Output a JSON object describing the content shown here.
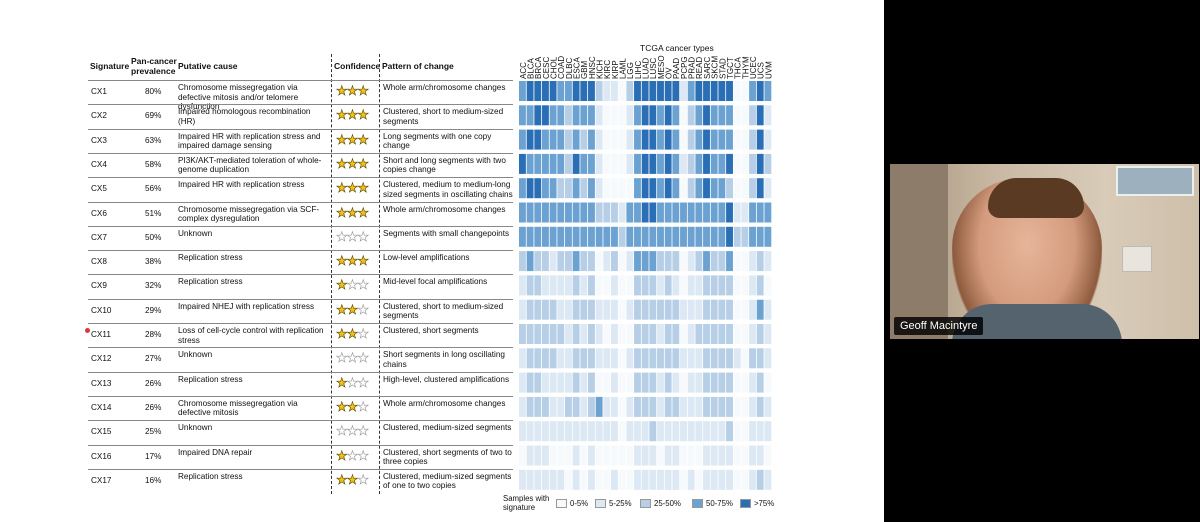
{
  "table": {
    "headers": {
      "signature": "Signature",
      "prevalence": "Pan-cancer prevalence",
      "cause": "Putative cause",
      "confidence": "Confidence",
      "pattern": "Pattern of change"
    },
    "rows": [
      {
        "sig": "CX1",
        "prev": "80%",
        "cause": "Chromosome missegregation via defective mitosis and/or telomere dysfunction",
        "stars": 3,
        "pattern": "Whole arm/chromosome changes"
      },
      {
        "sig": "CX2",
        "prev": "69%",
        "cause": "Impaired homologous recombination (HR)",
        "stars": 3,
        "pattern": "Clustered, short to medium-sized segments"
      },
      {
        "sig": "CX3",
        "prev": "63%",
        "cause": "Impaired HR with replication stress and impaired damage sensing",
        "stars": 3,
        "pattern": "Long segments with one copy change"
      },
      {
        "sig": "CX4",
        "prev": "58%",
        "cause": "PI3K/AKT-mediated toleration of whole-genome duplication",
        "stars": 3,
        "pattern": "Short and long segments with two copies change"
      },
      {
        "sig": "CX5",
        "prev": "56%",
        "cause": "Impaired HR with replication stress",
        "stars": 3,
        "pattern": "Clustered, medium to medium-long sized segments in oscillating chains"
      },
      {
        "sig": "CX6",
        "prev": "51%",
        "cause": "Chromosome missegregation via SCF-complex dysregulation",
        "stars": 3,
        "pattern": "Whole arm/chromosome changes"
      },
      {
        "sig": "CX7",
        "prev": "50%",
        "cause": "Unknown",
        "stars": 0,
        "pattern": "Segments with small changepoints"
      },
      {
        "sig": "CX8",
        "prev": "38%",
        "cause": "Replication stress",
        "stars": 3,
        "pattern": "Low-level amplifications"
      },
      {
        "sig": "CX9",
        "prev": "32%",
        "cause": "Replication stress",
        "stars": 1,
        "pattern": "Mid-level focal amplifications"
      },
      {
        "sig": "CX10",
        "prev": "29%",
        "cause": "Impaired NHEJ with replication stress",
        "stars": 2,
        "pattern": "Clustered, short to medium-sized segments"
      },
      {
        "sig": "CX11",
        "prev": "28%",
        "cause": "Loss of cell-cycle control with replication stress",
        "stars": 2,
        "pattern": "Clustered, short segments"
      },
      {
        "sig": "CX12",
        "prev": "27%",
        "cause": "Unknown",
        "stars": 0,
        "pattern": "Short segments in long oscillating chains"
      },
      {
        "sig": "CX13",
        "prev": "26%",
        "cause": "Replication stress",
        "stars": 1,
        "pattern": "High-level, clustered amplifications"
      },
      {
        "sig": "CX14",
        "prev": "26%",
        "cause": "Chromosome missegregation via defective mitosis",
        "stars": 2,
        "pattern": "Whole arm/chromosome changes"
      },
      {
        "sig": "CX15",
        "prev": "25%",
        "cause": "Unknown",
        "stars": 0,
        "pattern": "Clustered, medium-sized segments"
      },
      {
        "sig": "CX16",
        "prev": "17%",
        "cause": "Impaired DNA repair",
        "stars": 1,
        "pattern": "Clustered, short segments of two to three copies"
      },
      {
        "sig": "CX17",
        "prev": "16%",
        "cause": "Replication stress",
        "stars": 2,
        "pattern": "Clustered, medium-sized segments of one to two copies"
      }
    ]
  },
  "heatmap": {
    "title": "TCGA cancer types",
    "cancer_types": [
      "ACC",
      "BLCA",
      "BRCA",
      "CESC",
      "CHOL",
      "COAD",
      "DLBC",
      "ESCA",
      "GBM",
      "HNSC",
      "KICH",
      "KIRC",
      "KIRP",
      "LAML",
      "LGG",
      "LIHC",
      "LUAD",
      "LUSC",
      "MESO",
      "OV",
      "PAAD",
      "PCPG",
      "PRAD",
      "READ",
      "SARC",
      "SKCM",
      "STAD",
      "TGCT",
      "THCA",
      "THYM",
      "UCEC",
      "UCS",
      "UVM"
    ],
    "levels": [
      [
        3,
        4,
        4,
        4,
        4,
        3,
        3,
        4,
        4,
        4,
        2,
        1,
        1,
        0,
        2,
        4,
        4,
        4,
        4,
        4,
        4,
        1,
        3,
        4,
        4,
        4,
        4,
        4,
        0,
        0,
        3,
        4,
        3
      ],
      [
        3,
        3,
        4,
        4,
        3,
        3,
        2,
        3,
        3,
        3,
        1,
        0,
        0,
        0,
        1,
        3,
        4,
        4,
        3,
        4,
        3,
        0,
        2,
        3,
        4,
        3,
        3,
        3,
        0,
        0,
        2,
        4,
        1
      ],
      [
        3,
        4,
        4,
        3,
        3,
        3,
        2,
        3,
        2,
        3,
        1,
        0,
        0,
        0,
        1,
        3,
        4,
        4,
        3,
        4,
        3,
        0,
        2,
        3,
        4,
        3,
        3,
        3,
        0,
        0,
        2,
        4,
        1
      ],
      [
        4,
        3,
        3,
        3,
        3,
        3,
        2,
        4,
        3,
        3,
        1,
        0,
        0,
        0,
        1,
        3,
        4,
        4,
        3,
        4,
        3,
        1,
        2,
        3,
        4,
        3,
        3,
        4,
        0,
        0,
        2,
        4,
        2
      ],
      [
        3,
        4,
        4,
        3,
        3,
        2,
        2,
        3,
        2,
        3,
        1,
        0,
        0,
        0,
        0,
        3,
        4,
        4,
        3,
        4,
        3,
        0,
        2,
        3,
        4,
        3,
        3,
        2,
        0,
        0,
        2,
        4,
        1
      ],
      [
        3,
        3,
        3,
        3,
        3,
        3,
        3,
        3,
        3,
        3,
        2,
        2,
        2,
        1,
        3,
        3,
        4,
        4,
        3,
        3,
        3,
        3,
        3,
        3,
        3,
        3,
        3,
        4,
        1,
        1,
        3,
        3,
        3
      ],
      [
        3,
        3,
        3,
        3,
        3,
        3,
        3,
        3,
        3,
        3,
        3,
        3,
        3,
        2,
        3,
        3,
        3,
        3,
        3,
        3,
        3,
        3,
        3,
        3,
        3,
        3,
        3,
        4,
        2,
        2,
        3,
        3,
        3
      ],
      [
        2,
        3,
        2,
        2,
        1,
        2,
        2,
        3,
        2,
        2,
        0,
        1,
        2,
        0,
        1,
        3,
        3,
        3,
        2,
        2,
        2,
        0,
        1,
        2,
        3,
        2,
        2,
        3,
        0,
        0,
        1,
        2,
        1
      ],
      [
        1,
        2,
        2,
        1,
        1,
        1,
        1,
        2,
        1,
        2,
        0,
        0,
        1,
        0,
        0,
        2,
        2,
        2,
        1,
        2,
        1,
        0,
        1,
        1,
        2,
        2,
        2,
        2,
        0,
        0,
        1,
        2,
        0
      ],
      [
        1,
        2,
        2,
        2,
        2,
        1,
        1,
        2,
        2,
        2,
        1,
        1,
        1,
        0,
        1,
        2,
        2,
        2,
        2,
        2,
        2,
        1,
        1,
        1,
        2,
        2,
        2,
        2,
        0,
        0,
        1,
        3,
        1
      ],
      [
        2,
        2,
        2,
        2,
        2,
        2,
        1,
        2,
        1,
        2,
        1,
        0,
        1,
        0,
        0,
        2,
        2,
        2,
        1,
        2,
        2,
        0,
        1,
        2,
        2,
        2,
        2,
        2,
        0,
        0,
        1,
        2,
        1
      ],
      [
        1,
        2,
        2,
        2,
        2,
        1,
        1,
        2,
        2,
        2,
        1,
        1,
        1,
        0,
        1,
        2,
        2,
        2,
        2,
        2,
        2,
        1,
        1,
        1,
        2,
        2,
        2,
        2,
        1,
        0,
        2,
        2,
        1
      ],
      [
        1,
        2,
        2,
        1,
        1,
        1,
        1,
        2,
        1,
        2,
        0,
        0,
        1,
        0,
        0,
        2,
        2,
        2,
        1,
        2,
        1,
        0,
        1,
        1,
        2,
        2,
        2,
        2,
        0,
        0,
        1,
        2,
        0
      ],
      [
        1,
        2,
        2,
        2,
        1,
        1,
        2,
        2,
        1,
        2,
        3,
        1,
        1,
        0,
        1,
        2,
        2,
        2,
        1,
        2,
        2,
        1,
        1,
        1,
        2,
        2,
        2,
        2,
        0,
        0,
        1,
        2,
        1
      ],
      [
        1,
        1,
        1,
        1,
        1,
        1,
        1,
        1,
        1,
        1,
        1,
        1,
        1,
        0,
        1,
        1,
        1,
        2,
        1,
        1,
        1,
        1,
        1,
        1,
        1,
        1,
        1,
        2,
        0,
        0,
        1,
        1,
        1
      ],
      [
        0,
        1,
        1,
        1,
        0,
        0,
        0,
        1,
        0,
        1,
        0,
        0,
        0,
        0,
        0,
        1,
        1,
        1,
        0,
        1,
        1,
        0,
        0,
        0,
        1,
        1,
        1,
        1,
        0,
        0,
        1,
        1,
        0
      ],
      [
        1,
        1,
        1,
        1,
        1,
        1,
        0,
        1,
        0,
        1,
        0,
        0,
        1,
        0,
        0,
        1,
        1,
        1,
        1,
        1,
        1,
        0,
        1,
        0,
        1,
        1,
        1,
        1,
        0,
        0,
        1,
        2,
        1
      ]
    ],
    "colors": [
      "#f7fafd",
      "#dce8f3",
      "#b6cfe6",
      "#6ba2d2",
      "#2a6fb6"
    ]
  },
  "legend": {
    "label": "Samples with signature",
    "bins": [
      "0-5%",
      "5-25%",
      "25-50%",
      "50-75%",
      ">75%"
    ]
  },
  "participant": {
    "name": "Geoff Macintyre"
  }
}
